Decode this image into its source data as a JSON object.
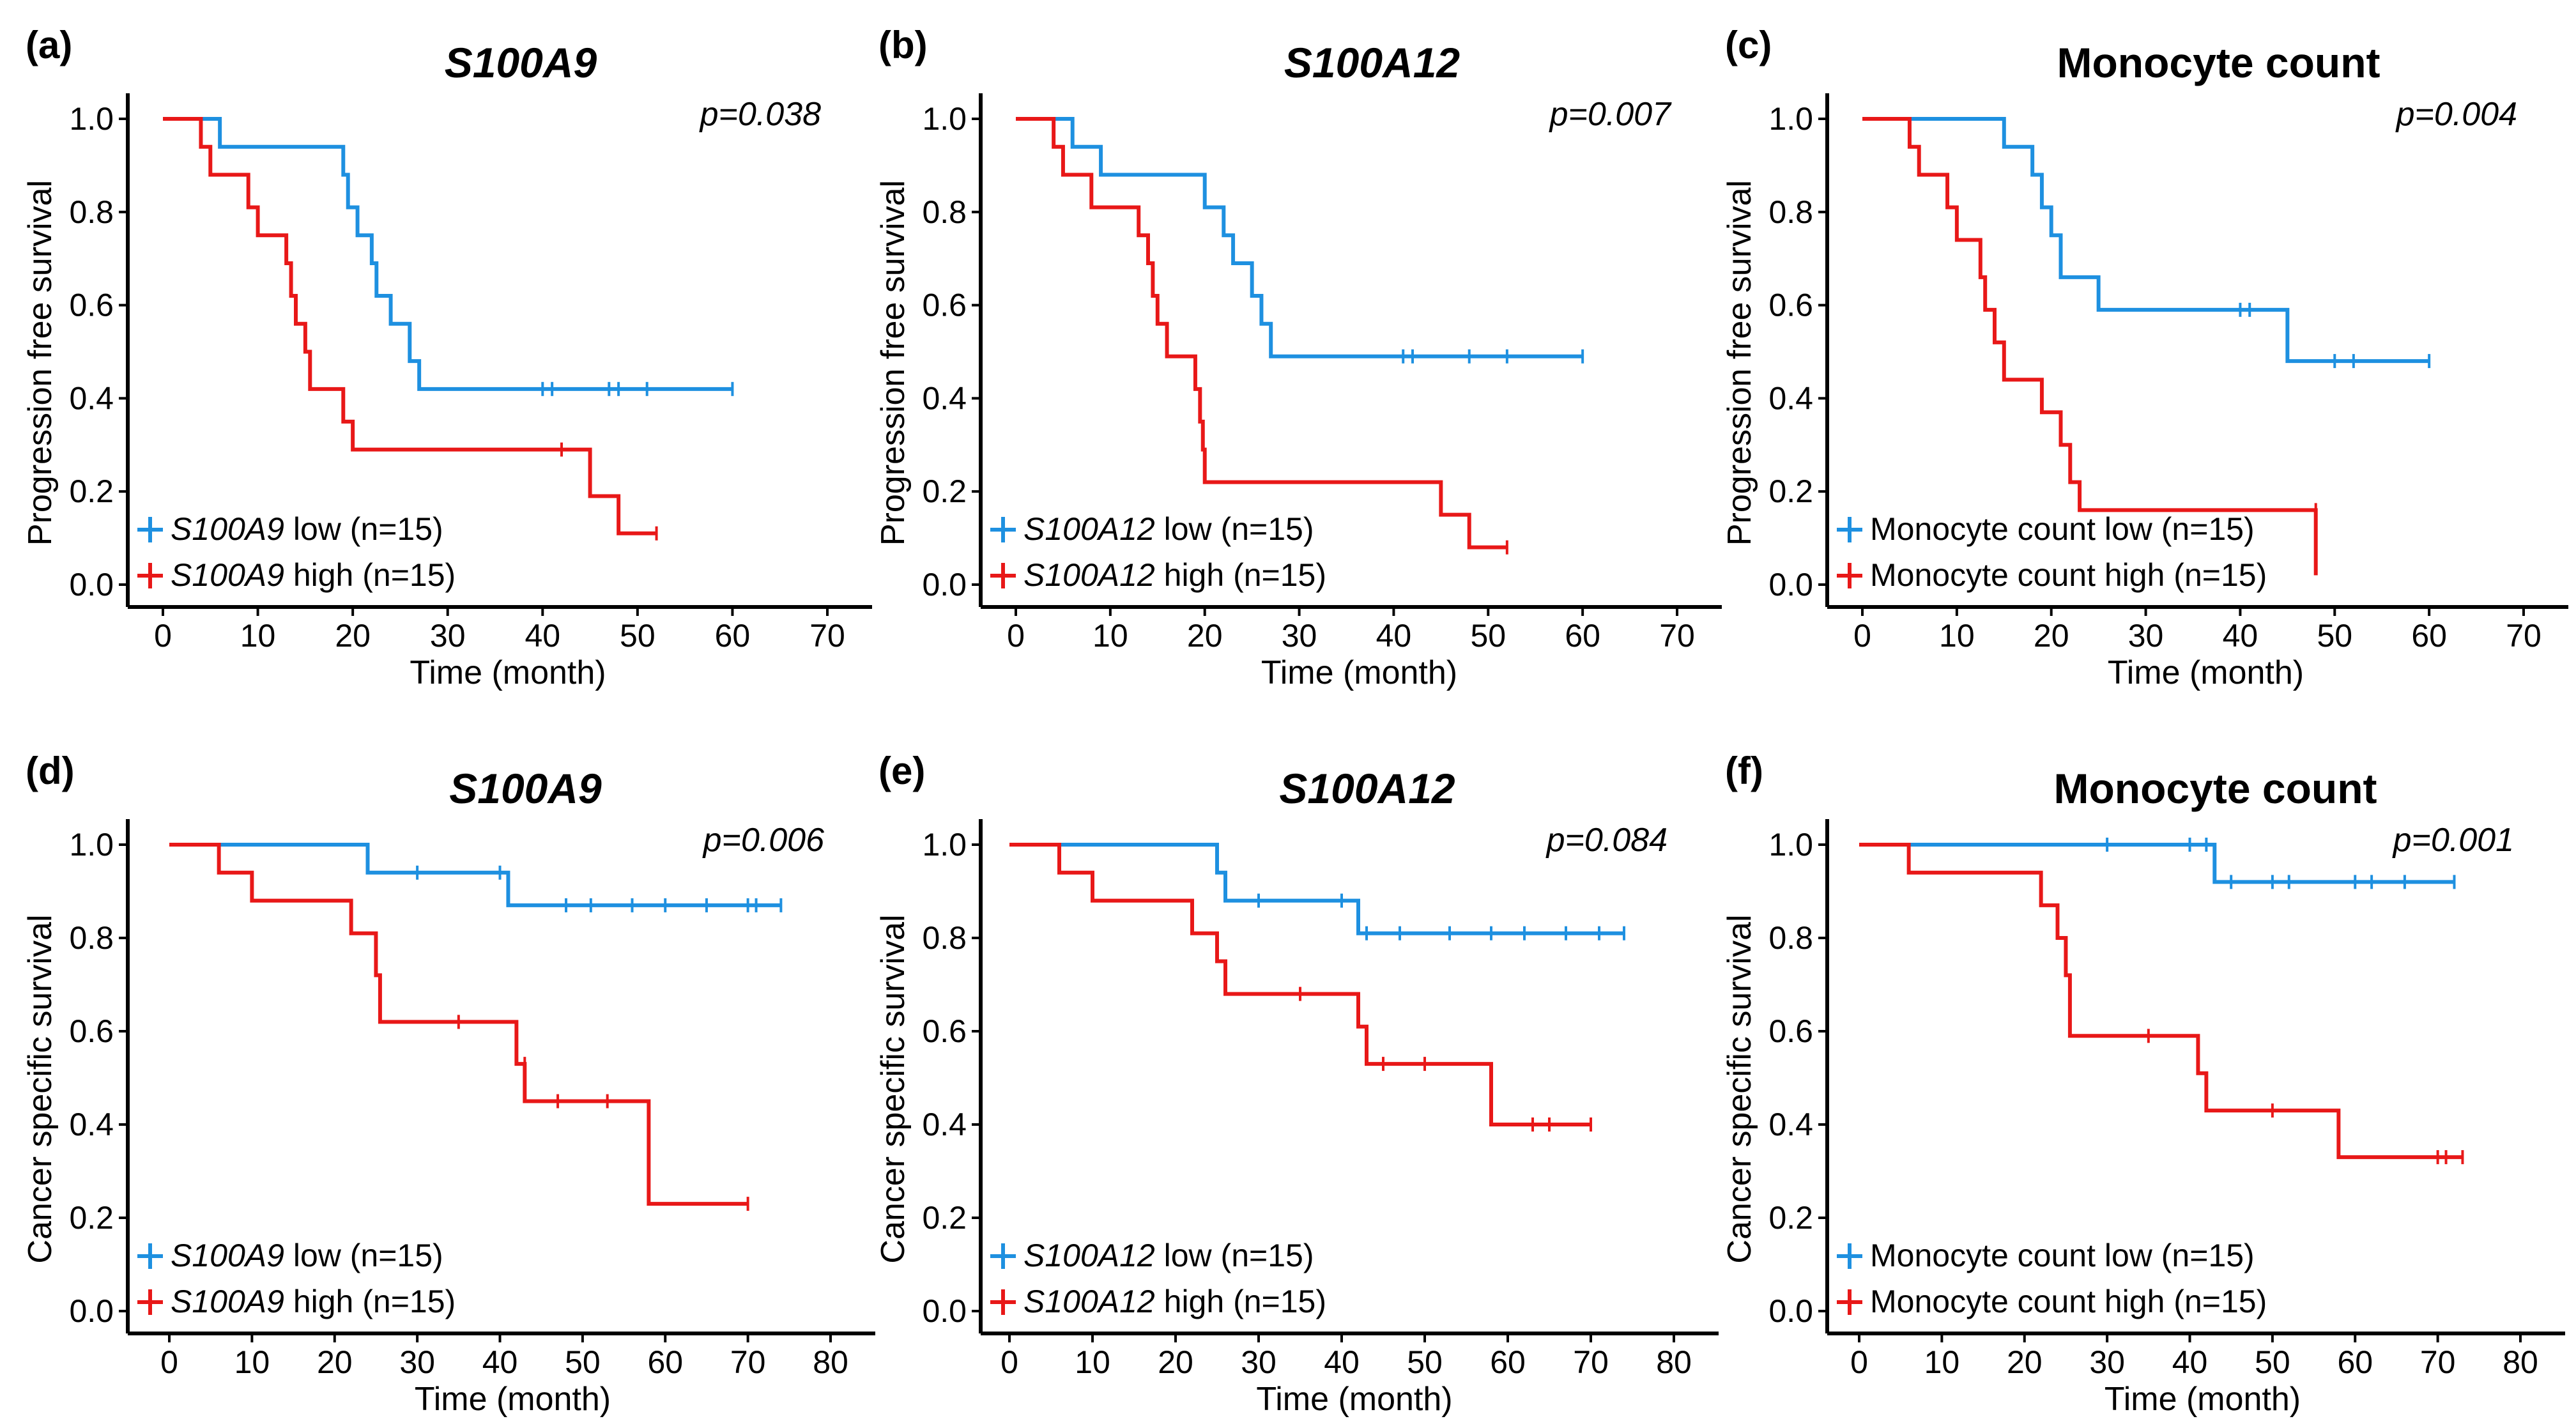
{
  "colors": {
    "low": "#1E90E0",
    "high": "#E81818",
    "axis": "#000000"
  },
  "chart_data": [
    {
      "type": "line",
      "panel": "(a)",
      "title": "S100A9",
      "title_italic": true,
      "ylabel": "Progression free survival",
      "xlabel": "Time (month)",
      "xlim": [
        0,
        70
      ],
      "ylim": [
        0,
        1
      ],
      "xticks": [
        0,
        10,
        20,
        30,
        40,
        50,
        60,
        70
      ],
      "yticks": [
        0,
        0.2,
        0.4,
        0.6,
        0.8,
        1.0
      ],
      "pvalue": "p=0.038",
      "series": [
        {
          "name": "low",
          "legend": [
            "S100A9",
            " low (n=15)"
          ],
          "color": "low",
          "steps": [
            [
              0,
              1.0
            ],
            [
              6,
              0.94
            ],
            [
              19,
              0.88
            ],
            [
              19.5,
              0.81
            ],
            [
              20.5,
              0.75
            ],
            [
              22,
              0.69
            ],
            [
              22.5,
              0.62
            ],
            [
              24,
              0.56
            ],
            [
              26,
              0.48
            ],
            [
              27,
              0.42
            ],
            [
              60,
              0.42
            ]
          ],
          "censors": [
            [
              40,
              0.42
            ],
            [
              41,
              0.42
            ],
            [
              47,
              0.42
            ],
            [
              48,
              0.42
            ],
            [
              51,
              0.42
            ],
            [
              60,
              0.42
            ]
          ]
        },
        {
          "name": "high",
          "legend": [
            "S100A9",
            " high (n=15)"
          ],
          "color": "high",
          "steps": [
            [
              0,
              1.0
            ],
            [
              4,
              0.94
            ],
            [
              5,
              0.88
            ],
            [
              9,
              0.81
            ],
            [
              10,
              0.75
            ],
            [
              13,
              0.69
            ],
            [
              13.5,
              0.62
            ],
            [
              14,
              0.56
            ],
            [
              15,
              0.5
            ],
            [
              15.5,
              0.42
            ],
            [
              19,
              0.35
            ],
            [
              20,
              0.29
            ],
            [
              45,
              0.19
            ],
            [
              48,
              0.11
            ],
            [
              52,
              0.11
            ]
          ],
          "censors": [
            [
              42,
              0.29
            ],
            [
              52,
              0.11
            ]
          ]
        }
      ]
    },
    {
      "type": "line",
      "panel": "(b)",
      "title": "S100A12",
      "title_italic": true,
      "ylabel": "Progression free survival",
      "xlabel": "Time (month)",
      "xlim": [
        0,
        70
      ],
      "ylim": [
        0,
        1
      ],
      "xticks": [
        0,
        10,
        20,
        30,
        40,
        50,
        60,
        70
      ],
      "yticks": [
        0,
        0.2,
        0.4,
        0.6,
        0.8,
        1.0
      ],
      "pvalue": "p=0.007",
      "series": [
        {
          "name": "low",
          "legend": [
            "S100A12",
            " low (n=15)"
          ],
          "color": "low",
          "steps": [
            [
              0,
              1.0
            ],
            [
              6,
              0.94
            ],
            [
              9,
              0.88
            ],
            [
              20,
              0.81
            ],
            [
              22,
              0.75
            ],
            [
              23,
              0.69
            ],
            [
              25,
              0.62
            ],
            [
              26,
              0.56
            ],
            [
              27,
              0.49
            ],
            [
              60,
              0.49
            ]
          ],
          "censors": [
            [
              41,
              0.49
            ],
            [
              42,
              0.49
            ],
            [
              48,
              0.49
            ],
            [
              52,
              0.49
            ],
            [
              60,
              0.49
            ]
          ]
        },
        {
          "name": "high",
          "legend": [
            "S100A12",
            " high (n=15)"
          ],
          "color": "high",
          "steps": [
            [
              0,
              1.0
            ],
            [
              4,
              0.94
            ],
            [
              5,
              0.88
            ],
            [
              8,
              0.81
            ],
            [
              13,
              0.75
            ],
            [
              14,
              0.69
            ],
            [
              14.5,
              0.62
            ],
            [
              15,
              0.56
            ],
            [
              16,
              0.49
            ],
            [
              19,
              0.42
            ],
            [
              19.5,
              0.35
            ],
            [
              19.8,
              0.29
            ],
            [
              20,
              0.22
            ],
            [
              45,
              0.15
            ],
            [
              48,
              0.08
            ],
            [
              52,
              0.08
            ]
          ],
          "censors": [
            [
              52,
              0.08
            ]
          ]
        }
      ]
    },
    {
      "type": "line",
      "panel": "(c)",
      "title": "Monocyte count",
      "title_italic": false,
      "ylabel": "Progression free survival",
      "xlabel": "Time (month)",
      "xlim": [
        0,
        70
      ],
      "ylim": [
        0,
        1
      ],
      "xticks": [
        0,
        10,
        20,
        30,
        40,
        50,
        60,
        70
      ],
      "yticks": [
        0,
        0.2,
        0.4,
        0.6,
        0.8,
        1.0
      ],
      "pvalue": "p=0.004",
      "series": [
        {
          "name": "low",
          "legend": [
            "",
            "Monocyte count low (n=15)"
          ],
          "color": "low",
          "steps": [
            [
              0,
              1.0
            ],
            [
              15,
              0.94
            ],
            [
              18,
              0.88
            ],
            [
              19,
              0.81
            ],
            [
              20,
              0.75
            ],
            [
              21,
              0.66
            ],
            [
              25,
              0.59
            ],
            [
              45,
              0.48
            ],
            [
              60,
              0.48
            ]
          ],
          "censors": [
            [
              40,
              0.59
            ],
            [
              41,
              0.59
            ],
            [
              50,
              0.48
            ],
            [
              52,
              0.48
            ],
            [
              60,
              0.48
            ]
          ]
        },
        {
          "name": "high",
          "legend": [
            "",
            "Monocyte count high (n=15)"
          ],
          "color": "high",
          "steps": [
            [
              0,
              1.0
            ],
            [
              5,
              0.94
            ],
            [
              6,
              0.88
            ],
            [
              9,
              0.81
            ],
            [
              10,
              0.74
            ],
            [
              12.5,
              0.66
            ],
            [
              13,
              0.59
            ],
            [
              14,
              0.52
            ],
            [
              15,
              0.44
            ],
            [
              19,
              0.37
            ],
            [
              21,
              0.3
            ],
            [
              22,
              0.22
            ],
            [
              23,
              0.16
            ],
            [
              48,
              0.02
            ]
          ],
          "censors": [
            [
              48,
              0.16
            ]
          ]
        }
      ]
    },
    {
      "type": "line",
      "panel": "(d)",
      "title": "S100A9",
      "title_italic": true,
      "ylabel": "Cancer specific survival",
      "xlabel": "Time (month)",
      "xlim": [
        0,
        80
      ],
      "ylim": [
        0,
        1
      ],
      "xticks": [
        0,
        10,
        20,
        30,
        40,
        50,
        60,
        70,
        80
      ],
      "yticks": [
        0,
        0.2,
        0.4,
        0.6,
        0.8,
        1.0
      ],
      "pvalue": "p=0.006",
      "series": [
        {
          "name": "low",
          "legend": [
            "S100A9",
            " low (n=15)"
          ],
          "color": "low",
          "steps": [
            [
              0,
              1.0
            ],
            [
              24,
              0.94
            ],
            [
              41,
              0.87
            ],
            [
              74,
              0.87
            ]
          ],
          "censors": [
            [
              30,
              0.94
            ],
            [
              40,
              0.94
            ],
            [
              48,
              0.87
            ],
            [
              51,
              0.87
            ],
            [
              56,
              0.87
            ],
            [
              60,
              0.87
            ],
            [
              65,
              0.87
            ],
            [
              70,
              0.87
            ],
            [
              71,
              0.87
            ],
            [
              74,
              0.87
            ]
          ]
        },
        {
          "name": "high",
          "legend": [
            "S100A9",
            " high (n=15)"
          ],
          "color": "high",
          "steps": [
            [
              0,
              1.0
            ],
            [
              6,
              0.94
            ],
            [
              10,
              0.88
            ],
            [
              22,
              0.81
            ],
            [
              25,
              0.72
            ],
            [
              25.5,
              0.62
            ],
            [
              42,
              0.53
            ],
            [
              43,
              0.45
            ],
            [
              58,
              0.23
            ],
            [
              70,
              0.23
            ]
          ],
          "censors": [
            [
              35,
              0.62
            ],
            [
              43,
              0.53
            ],
            [
              47,
              0.45
            ],
            [
              53,
              0.45
            ],
            [
              70,
              0.23
            ]
          ]
        }
      ]
    },
    {
      "type": "line",
      "panel": "(e)",
      "title": "S100A12",
      "title_italic": true,
      "ylabel": "Cancer specific survival",
      "xlabel": "Time (month)",
      "xlim": [
        0,
        80
      ],
      "ylim": [
        0,
        1
      ],
      "xticks": [
        0,
        10,
        20,
        30,
        40,
        50,
        60,
        70,
        80
      ],
      "yticks": [
        0,
        0.2,
        0.4,
        0.6,
        0.8,
        1.0
      ],
      "pvalue": "p=0.084",
      "series": [
        {
          "name": "low",
          "legend": [
            "S100A12",
            " low (n=15)"
          ],
          "color": "low",
          "steps": [
            [
              0,
              1.0
            ],
            [
              25,
              0.94
            ],
            [
              26,
              0.88
            ],
            [
              42,
              0.81
            ],
            [
              74,
              0.81
            ]
          ],
          "censors": [
            [
              30,
              0.88
            ],
            [
              40,
              0.88
            ],
            [
              43,
              0.81
            ],
            [
              47,
              0.81
            ],
            [
              53,
              0.81
            ],
            [
              58,
              0.81
            ],
            [
              62,
              0.81
            ],
            [
              67,
              0.81
            ],
            [
              71,
              0.81
            ],
            [
              74,
              0.81
            ]
          ]
        },
        {
          "name": "high",
          "legend": [
            "S100A12",
            " high (n=15)"
          ],
          "color": "high",
          "steps": [
            [
              0,
              1.0
            ],
            [
              6,
              0.94
            ],
            [
              10,
              0.88
            ],
            [
              22,
              0.81
            ],
            [
              25,
              0.75
            ],
            [
              26,
              0.68
            ],
            [
              42,
              0.61
            ],
            [
              43,
              0.53
            ],
            [
              58,
              0.4
            ],
            [
              70,
              0.4
            ]
          ],
          "censors": [
            [
              35,
              0.68
            ],
            [
              45,
              0.53
            ],
            [
              50,
              0.53
            ],
            [
              63,
              0.4
            ],
            [
              65,
              0.4
            ],
            [
              70,
              0.4
            ]
          ]
        }
      ]
    },
    {
      "type": "line",
      "panel": "(f)",
      "title": "Monocyte count",
      "title_italic": false,
      "ylabel": "Cancer specific survival",
      "xlabel": "Time (month)",
      "xlim": [
        0,
        80
      ],
      "ylim": [
        0,
        1
      ],
      "xticks": [
        0,
        10,
        20,
        30,
        40,
        50,
        60,
        70,
        80
      ],
      "yticks": [
        0,
        0.2,
        0.4,
        0.6,
        0.8,
        1.0
      ],
      "pvalue": "p=0.001",
      "series": [
        {
          "name": "low",
          "legend": [
            "",
            "Monocyte count low (n=15)"
          ],
          "color": "low",
          "steps": [
            [
              0,
              1.0
            ],
            [
              43,
              0.92
            ],
            [
              72,
              0.92
            ]
          ],
          "censors": [
            [
              30,
              1.0
            ],
            [
              40,
              1.0
            ],
            [
              42,
              1.0
            ],
            [
              45,
              0.92
            ],
            [
              50,
              0.92
            ],
            [
              52,
              0.92
            ],
            [
              60,
              0.92
            ],
            [
              62,
              0.92
            ],
            [
              66,
              0.92
            ],
            [
              72,
              0.92
            ]
          ]
        },
        {
          "name": "high",
          "legend": [
            "",
            "Monocyte count high (n=15)"
          ],
          "color": "high",
          "steps": [
            [
              0,
              1.0
            ],
            [
              6,
              0.94
            ],
            [
              22,
              0.87
            ],
            [
              24,
              0.8
            ],
            [
              25,
              0.72
            ],
            [
              25.5,
              0.59
            ],
            [
              41,
              0.51
            ],
            [
              42,
              0.43
            ],
            [
              58,
              0.33
            ],
            [
              73,
              0.33
            ]
          ],
          "censors": [
            [
              35,
              0.59
            ],
            [
              50,
              0.43
            ],
            [
              70,
              0.33
            ],
            [
              71,
              0.33
            ],
            [
              73,
              0.33
            ]
          ]
        }
      ]
    }
  ]
}
